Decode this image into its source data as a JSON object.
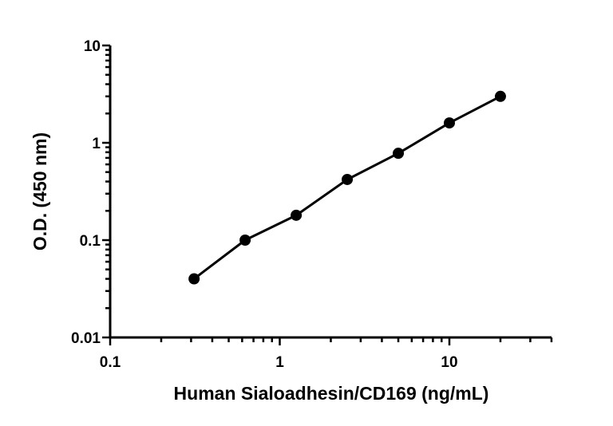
{
  "chart_data": {
    "type": "scatter",
    "title": "",
    "xlabel": "Human Sialoadhesin/CD169 (ng/mL)",
    "ylabel": "O.D. (450 nm)",
    "xscale": "log",
    "yscale": "log",
    "xlim": [
      0.1,
      40
    ],
    "ylim": [
      0.01,
      10
    ],
    "xticks": [
      {
        "value": 0.1,
        "label": "0.1"
      },
      {
        "value": 1,
        "label": "1"
      },
      {
        "value": 10,
        "label": "10"
      }
    ],
    "yticks": [
      {
        "value": 0.01,
        "label": "0.01"
      },
      {
        "value": 0.1,
        "label": "0.1"
      },
      {
        "value": 1,
        "label": "1"
      },
      {
        "value": 10,
        "label": "10"
      }
    ],
    "grid": false,
    "series": [
      {
        "x": [
          0.3125,
          0.625,
          1.25,
          2.5,
          5,
          10,
          20
        ],
        "y": [
          0.04,
          0.1,
          0.18,
          0.42,
          0.78,
          1.6,
          3.0
        ],
        "marker": "circle",
        "color": "#000000",
        "fit_line": true
      }
    ]
  }
}
